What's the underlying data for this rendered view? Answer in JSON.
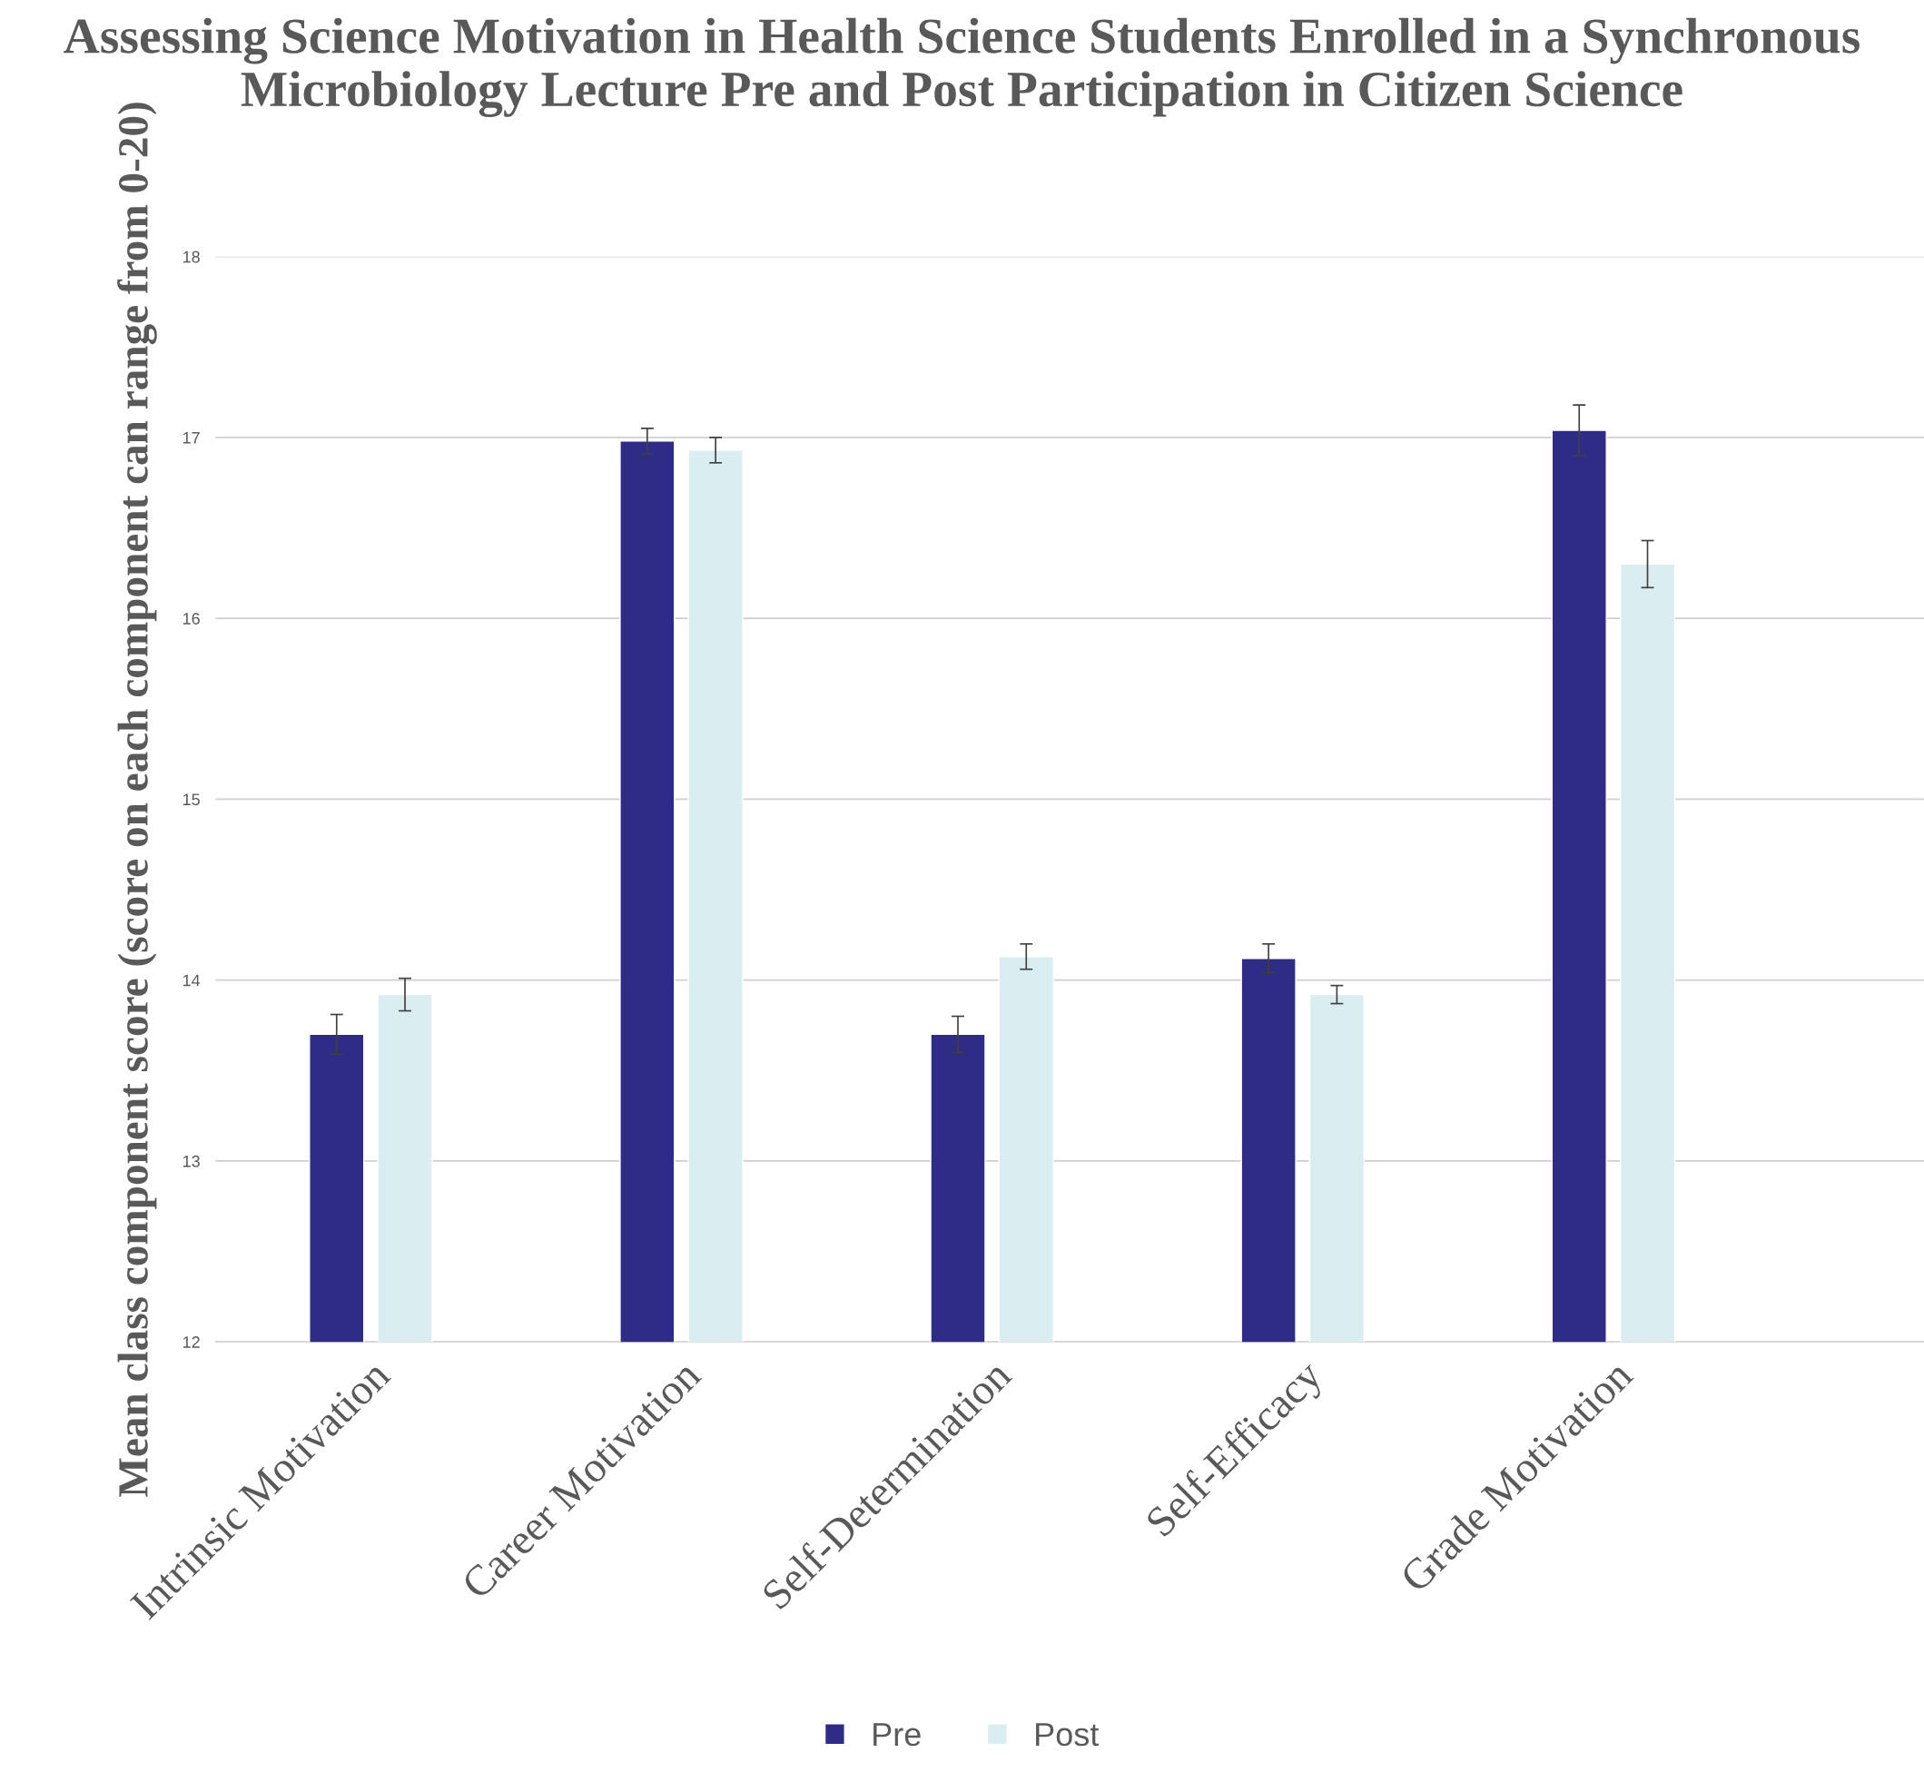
{
  "chart_data": {
    "type": "bar",
    "title": "Assessing Science Motivation in Health Science Students Enrolled in a Synchronous Microbiology Lecture Pre and Post Participation in Citizen Science",
    "ylabel": "Mean class component score (score on each component can range from 0-20)",
    "categories": [
      "Intrinsic Motivation",
      "Career Motivation",
      "Self-Determination",
      "Self-Efficacy",
      "Grade Motivation"
    ],
    "series": [
      {
        "name": "Pre",
        "color": "#2e2c87",
        "values": [
          13.7,
          16.98,
          13.7,
          14.12,
          17.04
        ],
        "errors": [
          0.11,
          0.07,
          0.1,
          0.08,
          0.14
        ]
      },
      {
        "name": "Post",
        "color": "#daedf0",
        "values": [
          13.92,
          16.93,
          14.13,
          13.92,
          16.3
        ],
        "errors": [
          0.09,
          0.07,
          0.07,
          0.05,
          0.13
        ]
      }
    ],
    "ylim": [
      12,
      18
    ],
    "yticks": [
      12,
      13,
      14,
      15,
      16,
      17,
      18
    ],
    "grid": "y",
    "legend": "bottom"
  }
}
